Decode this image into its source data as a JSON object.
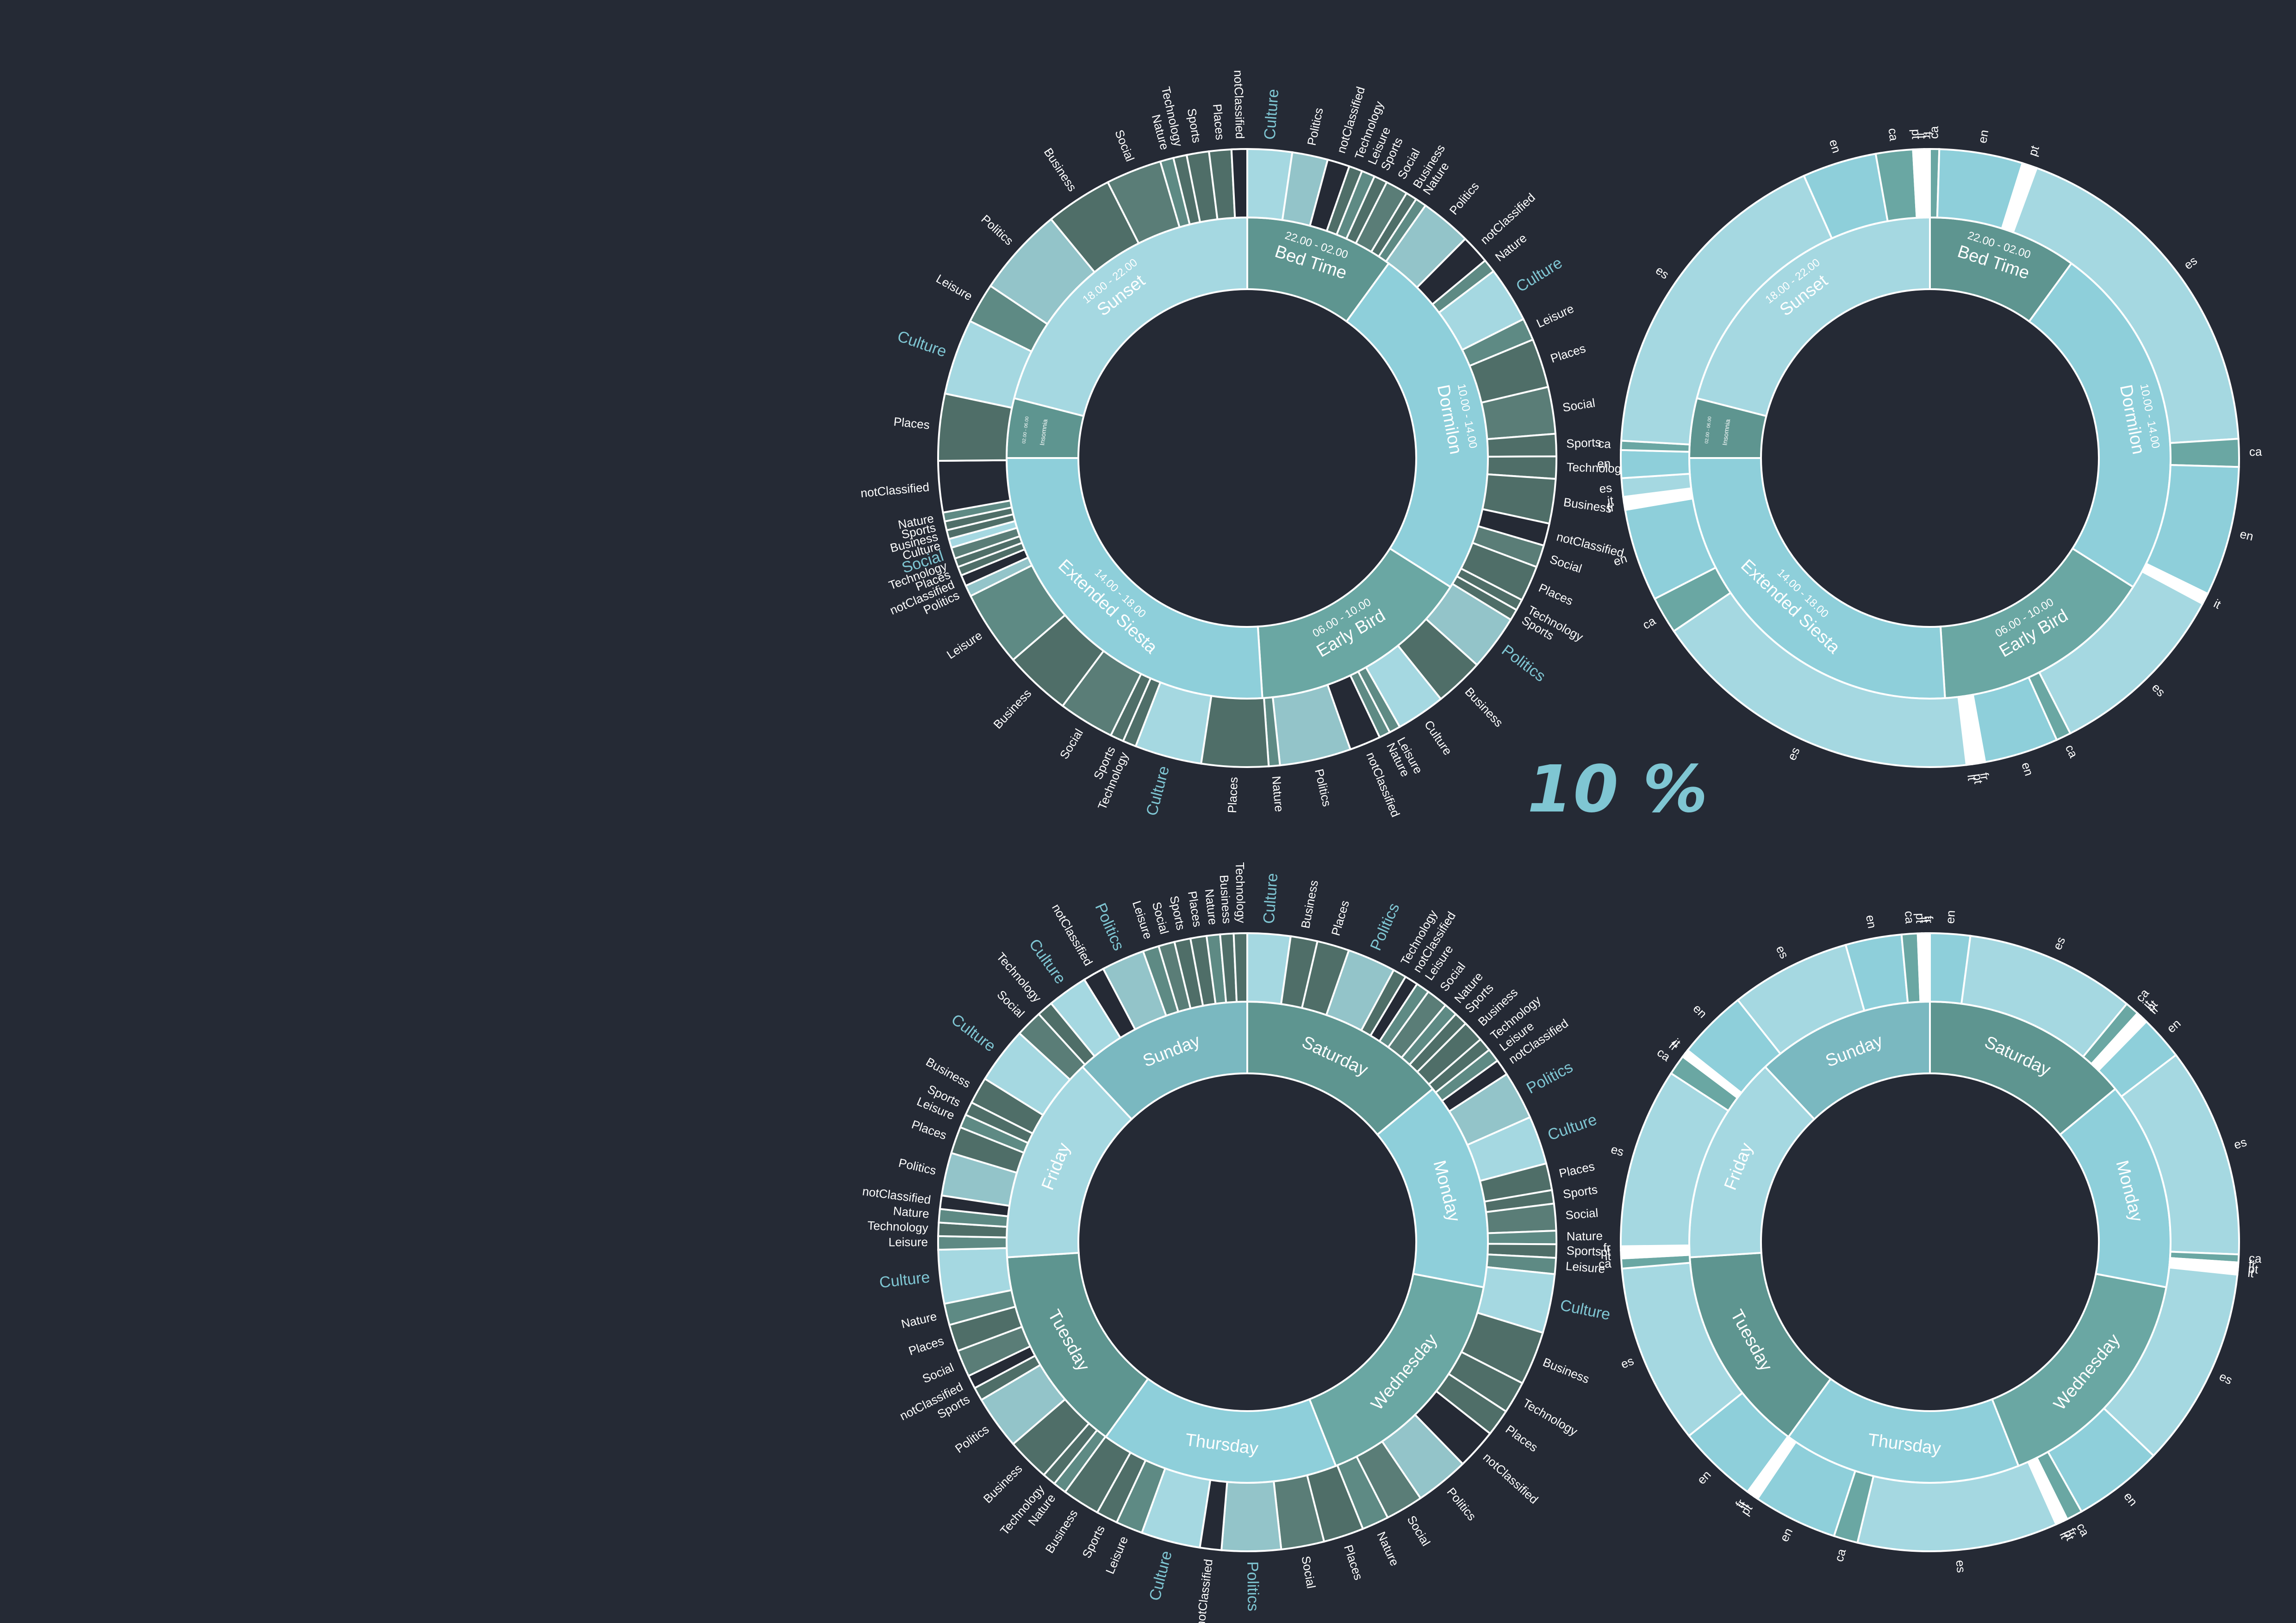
{
  "center_label": "10 %",
  "colors": {
    "background": "#252a35",
    "stroke": "#ffffff",
    "label": "#ffffff",
    "highlight_label": "#7fc6d3",
    "inner_fill": "#8ecfda",
    "dark_fill": "#4f6e68",
    "mid_fill": "#5e9590",
    "light_fill": "#a5d8e1",
    "empty_fill": "#252a35",
    "white_fill": "#ffffff"
  },
  "chart_data": [
    {
      "type": "sunburst",
      "inner_ring": [
        {
          "name": "Bed Time",
          "time": "22.00 - 02.00",
          "value": 10
        },
        {
          "name": "Dormilon",
          "time": "10.00 - 14.00",
          "value": 24
        },
        {
          "name": "Early Bird",
          "time": "06.00 - 10.00",
          "value": 15
        },
        {
          "name": "Extended Siesta",
          "time": "14.00 - 18.00",
          "value": 26
        },
        {
          "name": "Insomnia",
          "time": "02.00 - 06.00",
          "value": 4
        },
        {
          "name": "Sunset",
          "time": "18.00 - 22.00",
          "value": 21
        }
      ],
      "outer_ring": [
        {
          "label": "Culture",
          "value": 2,
          "highlight": true
        },
        {
          "label": "Politics",
          "value": 1.6
        },
        {
          "label": "notClassified",
          "value": 1
        },
        {
          "label": "Technology",
          "value": 0.6
        },
        {
          "label": "Leisure",
          "value": 0.6
        },
        {
          "label": "Sports",
          "value": 0.6
        },
        {
          "label": "Social",
          "value": 1
        },
        {
          "label": "Business",
          "value": 0.5
        },
        {
          "label": "Nature",
          "value": 0.5
        },
        {
          "label": "Politics",
          "value": 2.3
        },
        {
          "label": "notClassified",
          "value": 1.3
        },
        {
          "label": "Nature",
          "value": 0.6
        },
        {
          "label": "Culture",
          "value": 2.5,
          "highlight": true
        },
        {
          "label": "Leisure",
          "value": 1
        },
        {
          "label": "Places",
          "value": 2.2
        },
        {
          "label": "Social",
          "value": 2.1
        },
        {
          "label": "Sports",
          "value": 1
        },
        {
          "label": "Technology",
          "value": 1
        },
        {
          "label": "Business",
          "value": 2
        },
        {
          "label": "notClassified",
          "value": 1
        },
        {
          "label": "Social",
          "value": 1
        },
        {
          "label": "Places",
          "value": 1.6
        },
        {
          "label": "Technology",
          "value": 0.5
        },
        {
          "label": "Sports",
          "value": 0.5
        },
        {
          "label": "Politics",
          "value": 2.5,
          "highlight": true
        },
        {
          "label": "Business",
          "value": 2.2
        },
        {
          "label": "Culture",
          "value": 2.2
        },
        {
          "label": "Leisure",
          "value": 0.5
        },
        {
          "label": "Nature",
          "value": 0.5
        },
        {
          "label": "notClassified",
          "value": 1.4
        },
        {
          "label": "Politics",
          "value": 3.2
        },
        {
          "label": "Nature",
          "value": 0.5
        },
        {
          "label": "Places",
          "value": 3
        },
        {
          "label": "Culture",
          "value": 3,
          "highlight": true
        },
        {
          "label": "Technology",
          "value": 0.6
        },
        {
          "label": "Sports",
          "value": 0.6
        },
        {
          "label": "Social",
          "value": 2.5
        },
        {
          "label": "Business",
          "value": 3
        },
        {
          "label": "Leisure",
          "value": 3.4
        },
        {
          "label": "Politics",
          "value": 0.5
        },
        {
          "label": "notClassified",
          "value": 0.5
        },
        {
          "label": "Places",
          "value": 0.4
        },
        {
          "label": "Technology",
          "value": 0.4
        },
        {
          "label": "Social",
          "value": 0.5,
          "highlight": true
        },
        {
          "label": "Culture",
          "value": 0.4
        },
        {
          "label": "Business",
          "value": 0.4
        },
        {
          "label": "Sports",
          "value": 0.4
        },
        {
          "label": "Nature",
          "value": 0.4
        },
        {
          "label": "notClassified",
          "value": 2.3
        },
        {
          "label": "Places",
          "value": 3
        },
        {
          "label": "Culture",
          "value": 3.4,
          "highlight": true
        },
        {
          "label": "Leisure",
          "value": 1.8
        },
        {
          "label": "Politics",
          "value": 4
        },
        {
          "label": "Business",
          "value": 3
        },
        {
          "label": "Social",
          "value": 2.5
        },
        {
          "label": "Nature",
          "value": 0.6
        },
        {
          "label": "Technology",
          "value": 0.6
        },
        {
          "label": "Sports",
          "value": 1
        },
        {
          "label": "Places",
          "value": 1
        },
        {
          "label": "notClassified",
          "value": 0.7
        }
      ]
    },
    {
      "type": "sunburst",
      "inner_ring": [
        {
          "name": "Bed Time",
          "time": "22.00 - 02.00",
          "value": 10
        },
        {
          "name": "Dormilon",
          "time": "10.00 - 14.00",
          "value": 24
        },
        {
          "name": "Early Bird",
          "time": "06.00 - 10.00",
          "value": 15
        },
        {
          "name": "Extended Siesta",
          "time": "14.00 - 18.00",
          "value": 26
        },
        {
          "name": "Insomnia",
          "time": "02.00 - 06.00",
          "value": 4
        },
        {
          "name": "Sunset",
          "time": "18.00 - 22.00",
          "value": 21
        }
      ],
      "outer_ring": [
        {
          "label": "ca",
          "value": 0.5
        },
        {
          "label": "en",
          "value": 4.5
        },
        {
          "label": "pt",
          "value": 0.8
        },
        {
          "label": "es",
          "value": 19
        },
        {
          "label": "ca",
          "value": 1.5
        },
        {
          "label": "en",
          "value": 7
        },
        {
          "label": "it",
          "value": 0.6
        },
        {
          "label": "es",
          "value": 10
        },
        {
          "label": "ca",
          "value": 0.8
        },
        {
          "label": "en",
          "value": 4
        },
        {
          "label": "fr",
          "value": 0.4
        },
        {
          "label": "pt",
          "value": 0.3
        },
        {
          "label": "it",
          "value": 0.3
        },
        {
          "label": "es",
          "value": 18
        },
        {
          "label": "ca",
          "value": 2
        },
        {
          "label": "en",
          "value": 5
        },
        {
          "label": "fr",
          "value": 0.4
        },
        {
          "label": "it",
          "value": 0.3
        },
        {
          "label": "es",
          "value": 1
        },
        {
          "label": "en",
          "value": 1.5
        },
        {
          "label": "ca",
          "value": 0.5
        },
        {
          "label": "es",
          "value": 18
        },
        {
          "label": "en",
          "value": 4
        },
        {
          "label": "ca",
          "value": 2
        },
        {
          "label": "pt",
          "value": 0.3
        },
        {
          "label": "it",
          "value": 0.3
        },
        {
          "label": "fr",
          "value": 0.3
        }
      ]
    },
    {
      "type": "sunburst",
      "inner_ring": [
        {
          "name": "Saturday",
          "value": 14
        },
        {
          "name": "Monday",
          "value": 14
        },
        {
          "name": "Wednesday",
          "value": 16
        },
        {
          "name": "Thursday",
          "value": 16
        },
        {
          "name": "Tuesday",
          "value": 14
        },
        {
          "name": "Friday",
          "value": 14
        },
        {
          "name": "Sunday",
          "value": 12
        }
      ],
      "outer_ring": [
        {
          "label": "Culture",
          "value": 1.6,
          "highlight": true
        },
        {
          "label": "Business",
          "value": 1
        },
        {
          "label": "Places",
          "value": 1.2
        },
        {
          "label": "Politics",
          "value": 1.8,
          "highlight": true
        },
        {
          "label": "Technology",
          "value": 0.5
        },
        {
          "label": "notClassified",
          "value": 0.5
        },
        {
          "label": "Leisure",
          "value": 0.5
        },
        {
          "label": "Social",
          "value": 0.8
        },
        {
          "label": "Nature",
          "value": 0.5
        },
        {
          "label": "Sports",
          "value": 0.5
        },
        {
          "label": "Business",
          "value": 0.8
        },
        {
          "label": "Technology",
          "value": 0.5
        },
        {
          "label": "Leisure",
          "value": 0.5
        },
        {
          "label": "notClassified",
          "value": 0.6
        },
        {
          "label": "Politics",
          "value": 1.8,
          "highlight": true
        },
        {
          "label": "Culture",
          "value": 1.8,
          "highlight": true
        },
        {
          "label": "Places",
          "value": 1
        },
        {
          "label": "Sports",
          "value": 0.5
        },
        {
          "label": "Social",
          "value": 1
        },
        {
          "label": "Nature",
          "value": 0.5
        },
        {
          "label": "Sports",
          "value": 0.5
        },
        {
          "label": "Leisure",
          "value": 0.6
        },
        {
          "label": "Culture",
          "value": 2.2,
          "highlight": true
        },
        {
          "label": "Business",
          "value": 2
        },
        {
          "label": "Technology",
          "value": 1.2
        },
        {
          "label": "Places",
          "value": 1
        },
        {
          "label": "notClassified",
          "value": 1.5
        },
        {
          "label": "Politics",
          "value": 2
        },
        {
          "label": "Social",
          "value": 1.4
        },
        {
          "label": "Nature",
          "value": 1
        },
        {
          "label": "Places",
          "value": 1.5
        },
        {
          "label": "Social",
          "value": 1.6
        },
        {
          "label": "Politics",
          "value": 2.2,
          "highlight": true
        },
        {
          "label": "notClassified",
          "value": 0.8
        },
        {
          "label": "Culture",
          "value": 2.2,
          "highlight": true
        },
        {
          "label": "Leisure",
          "value": 1
        },
        {
          "label": "Sports",
          "value": 0.8
        },
        {
          "label": "Business",
          "value": 1.4
        },
        {
          "label": "Nature",
          "value": 0.5
        },
        {
          "label": "Technology",
          "value": 0.5
        },
        {
          "label": "Business",
          "value": 1.6
        },
        {
          "label": "Politics",
          "value": 2
        },
        {
          "label": "Sports",
          "value": 0.5
        },
        {
          "label": "notClassified",
          "value": 0.5
        },
        {
          "label": "Social",
          "value": 1
        },
        {
          "label": "Places",
          "value": 1
        },
        {
          "label": "Nature",
          "value": 0.8
        },
        {
          "label": "Culture",
          "value": 2,
          "highlight": true
        },
        {
          "label": "Leisure",
          "value": 0.5
        },
        {
          "label": "Technology",
          "value": 0.5
        },
        {
          "label": "Nature",
          "value": 0.5
        },
        {
          "label": "notClassified",
          "value": 0.5
        },
        {
          "label": "Politics",
          "value": 1.6
        },
        {
          "label": "Places",
          "value": 1
        },
        {
          "label": "Leisure",
          "value": 0.5
        },
        {
          "label": "Sports",
          "value": 0.5
        },
        {
          "label": "Business",
          "value": 1
        },
        {
          "label": "Culture",
          "value": 2.1,
          "highlight": true
        },
        {
          "label": "Social",
          "value": 1
        },
        {
          "label": "Technology",
          "value": 0.6
        },
        {
          "label": "Culture",
          "value": 1.5,
          "highlight": true
        },
        {
          "label": "notClassified",
          "value": 0.8
        },
        {
          "label": "Politics",
          "value": 1.6,
          "highlight": true
        },
        {
          "label": "Leisure",
          "value": 0.6
        },
        {
          "label": "Social",
          "value": 0.6
        },
        {
          "label": "Sports",
          "value": 0.6
        },
        {
          "label": "Places",
          "value": 0.6
        },
        {
          "label": "Nature",
          "value": 0.5
        },
        {
          "label": "Business",
          "value": 0.5
        },
        {
          "label": "Technology",
          "value": 0.5
        }
      ]
    },
    {
      "type": "sunburst",
      "inner_ring": [
        {
          "name": "Saturday",
          "value": 14
        },
        {
          "name": "Monday",
          "value": 14
        },
        {
          "name": "Wednesday",
          "value": 16
        },
        {
          "name": "Thursday",
          "value": 16
        },
        {
          "name": "Tuesday",
          "value": 14
        },
        {
          "name": "Friday",
          "value": 14
        },
        {
          "name": "Sunday",
          "value": 12
        }
      ],
      "outer_ring": [
        {
          "label": "en",
          "value": 2
        },
        {
          "label": "es",
          "value": 8.5
        },
        {
          "label": "ca",
          "value": 0.7
        },
        {
          "label": "it",
          "value": 0.2
        },
        {
          "label": "pt",
          "value": 0.2
        },
        {
          "label": "fr",
          "value": 0.2
        },
        {
          "label": "en",
          "value": 2.2
        },
        {
          "label": "es",
          "value": 10.5
        },
        {
          "label": "ca",
          "value": 0.4
        },
        {
          "label": "fr",
          "value": 0.2
        },
        {
          "label": "pt",
          "value": 0.2
        },
        {
          "label": "it",
          "value": 0.2
        },
        {
          "label": "es",
          "value": 10
        },
        {
          "label": "en",
          "value": 4.5
        },
        {
          "label": "ca",
          "value": 0.8
        },
        {
          "label": "fr",
          "value": 0.2
        },
        {
          "label": "pt",
          "value": 0.2
        },
        {
          "label": "it",
          "value": 0.2
        },
        {
          "label": "es",
          "value": 10
        },
        {
          "label": "ca",
          "value": 1.2
        },
        {
          "label": "en",
          "value": 4.2
        },
        {
          "label": "pt",
          "value": 0.2
        },
        {
          "label": "it",
          "value": 0.2
        },
        {
          "label": "fr",
          "value": 0.2
        },
        {
          "label": "en",
          "value": 4
        },
        {
          "label": "es",
          "value": 9
        },
        {
          "label": "ca",
          "value": 0.5
        },
        {
          "label": "it",
          "value": 0.2
        },
        {
          "label": "pt",
          "value": 0.2
        },
        {
          "label": "fr",
          "value": 0.2
        },
        {
          "label": "es",
          "value": 9
        },
        {
          "label": "ca",
          "value": 1
        },
        {
          "label": "fr",
          "value": 0.2
        },
        {
          "label": "it",
          "value": 0.2
        },
        {
          "label": "en",
          "value": 3.5
        },
        {
          "label": "es",
          "value": 6
        },
        {
          "label": "en",
          "value": 2.8
        },
        {
          "label": "ca",
          "value": 0.8
        },
        {
          "label": "pt",
          "value": 0.2
        },
        {
          "label": "it",
          "value": 0.2
        },
        {
          "label": "fr",
          "value": 0.2
        }
      ]
    }
  ]
}
